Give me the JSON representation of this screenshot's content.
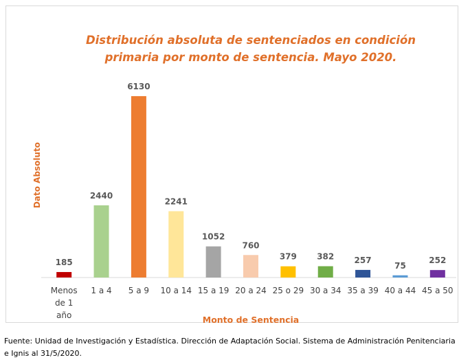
{
  "chart_data": {
    "type": "bar",
    "title": "Distribución absoluta de sentenciados en condición primaria por monto de sentencia. Mayo 2020.",
    "y_label": "Dato Absoluto",
    "x_label": "Monto de Sentencia",
    "source": "Fuente: Unidad de Investigación y Estadística. Dirección de Adaptación Social. Sistema de Administración Penitenciaria e Ignis al 31/5/2020.",
    "categories": [
      "Menos de 1 año",
      "1 a 4",
      "5 a 9",
      "10 a 14",
      "15 a 19",
      "20 a 24",
      "25 o 29",
      "30 a 34",
      "35 a 39",
      "40 a 44",
      "45 a 50"
    ],
    "values": [
      185,
      2440,
      6130,
      2241,
      1052,
      760,
      379,
      382,
      257,
      75,
      252
    ],
    "colors": [
      "#c00000",
      "#a9d18e",
      "#ed7d31",
      "#ffe699",
      "#a5a5a5",
      "#f8cbad",
      "#ffc000",
      "#70ad47",
      "#2f5597",
      "#5b9bd5",
      "#7030a0"
    ],
    "ylim": [
      0,
      6500
    ]
  }
}
